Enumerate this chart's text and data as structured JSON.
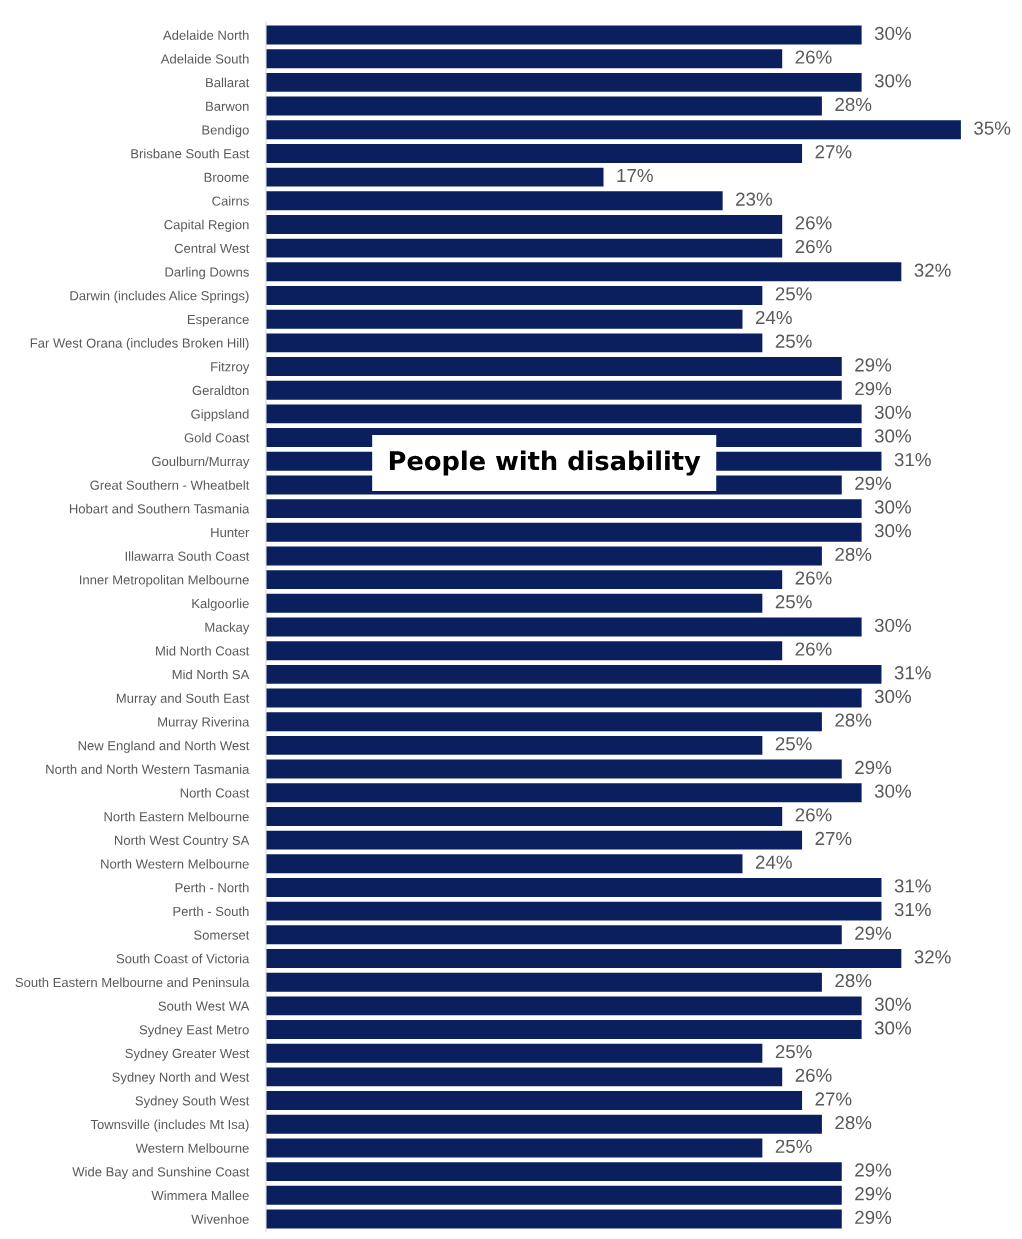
{
  "chart_data": {
    "type": "bar",
    "orientation": "horizontal",
    "title": "People with disability",
    "categories": [
      "Adelaide North",
      "Adelaide South",
      "Ballarat",
      "Barwon",
      "Bendigo",
      "Brisbane South East",
      "Broome",
      "Cairns",
      "Capital Region",
      "Central West",
      "Darling Downs",
      "Darwin (includes Alice Springs)",
      "Esperance",
      "Far West Orana (includes Broken Hill)",
      "Fitzroy",
      "Geraldton",
      "Gippsland",
      "Gold Coast",
      "Goulburn/Murray",
      "Great Southern - Wheatbelt",
      "Hobart and Southern Tasmania",
      "Hunter",
      "Illawarra South Coast",
      "Inner Metropolitan Melbourne",
      "Kalgoorlie",
      "Mackay",
      "Mid North Coast",
      "Mid North SA",
      "Murray and South East",
      "Murray Riverina",
      "New England and North West",
      "North and North Western Tasmania",
      "North Coast",
      "North Eastern Melbourne",
      "North West Country SA",
      "North Western Melbourne",
      "Perth - North",
      "Perth - South",
      "Somerset",
      "South Coast of Victoria",
      "South Eastern Melbourne and Peninsula",
      "South West WA",
      "Sydney East Metro",
      "Sydney Greater West",
      "Sydney North and West",
      "Sydney South West",
      "Townsville (includes Mt Isa)",
      "Western Melbourne",
      "Wide Bay and Sunshine Coast",
      "Wimmera Mallee",
      "Wivenhoe"
    ],
    "values": [
      30,
      26,
      30,
      28,
      35,
      27,
      17,
      23,
      26,
      26,
      32,
      25,
      24,
      25,
      29,
      29,
      30,
      30,
      31,
      29,
      30,
      30,
      28,
      26,
      25,
      30,
      26,
      31,
      30,
      28,
      25,
      29,
      30,
      26,
      27,
      24,
      31,
      31,
      29,
      32,
      28,
      30,
      30,
      25,
      26,
      27,
      28,
      25,
      29,
      29,
      29
    ],
    "value_labels": [
      "30%",
      "26%",
      "30%",
      "28%",
      "35%",
      "27%",
      "17%",
      "23%",
      "26%",
      "26%",
      "32%",
      "25%",
      "24%",
      "25%",
      "29%",
      "29%",
      "30%",
      "30%",
      "31%",
      "29%",
      "30%",
      "30%",
      "28%",
      "26%",
      "25%",
      "30%",
      "26%",
      "31%",
      "30%",
      "28%",
      "25%",
      "29%",
      "30%",
      "26%",
      "27%",
      "24%",
      "31%",
      "31%",
      "29%",
      "32%",
      "28%",
      "30%",
      "30%",
      "25%",
      "26%",
      "27%",
      "28%",
      "25%",
      "29%",
      "29%",
      "29%"
    ],
    "color": "#0b1f5e",
    "tick_labels": "y",
    "grid": false
  }
}
